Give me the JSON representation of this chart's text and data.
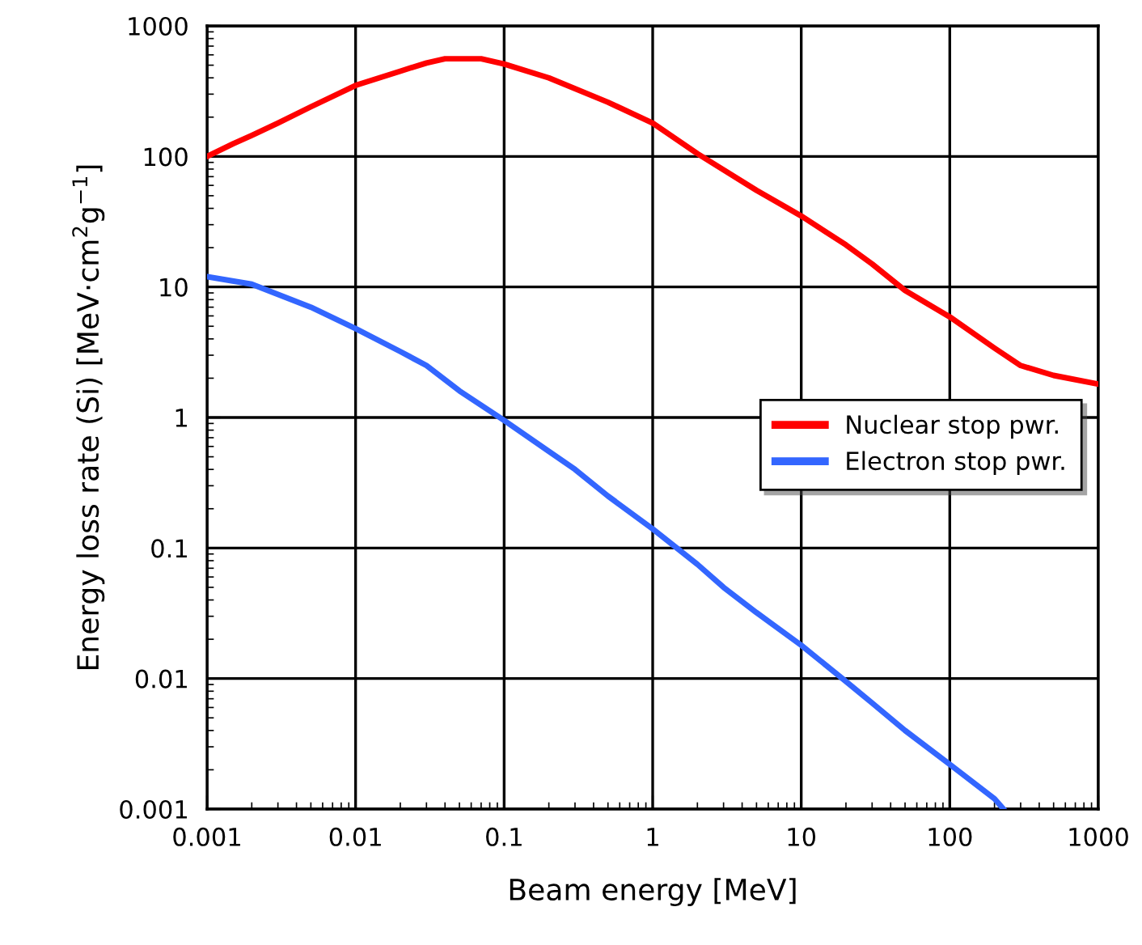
{
  "chart_data": {
    "type": "line",
    "xlabel": "Beam energy [MeV]",
    "ylabel": "Energy loss rate (Si) [MeV·cm$^{2}$g$^{−1}$]",
    "log": "xy",
    "grid": true,
    "legend": "right",
    "marker": "none",
    "line_style": "solid",
    "xlim": [
      0.001,
      1000
    ],
    "ylim": [
      0.001,
      1000
    ],
    "xticks": [
      0.001,
      0.01,
      0.1,
      1,
      10,
      100,
      1000
    ],
    "yticks": [
      0.001,
      0.01,
      0.1,
      1,
      10,
      100,
      1000
    ],
    "series": [
      {
        "name": "Nuclear stop pwr.",
        "color": "#ff0000",
        "x": [
          0.001,
          0.0015,
          0.002,
          0.003,
          0.005,
          0.01,
          0.02,
          0.03,
          0.04,
          0.07,
          0.1,
          0.2,
          0.5,
          1,
          2,
          5,
          10,
          20,
          30,
          50,
          100,
          200,
          300,
          500,
          1000
        ],
        "values": [
          100,
          125,
          145,
          180,
          240,
          350,
          450,
          520,
          560,
          560,
          510,
          400,
          260,
          180,
          105,
          55,
          35,
          21,
          15,
          9.4,
          5.9,
          3.4,
          2.5,
          2.1,
          1.8
        ]
      },
      {
        "name": "Electron stop pwr.",
        "color": "#3366ff",
        "x": [
          0.001,
          0.002,
          0.005,
          0.01,
          0.02,
          0.03,
          0.05,
          0.1,
          0.2,
          0.3,
          0.5,
          1,
          2,
          3,
          5,
          10,
          20,
          30,
          50,
          100,
          200,
          230
        ],
        "values": [
          12,
          10.5,
          7,
          4.8,
          3.2,
          2.5,
          1.6,
          0.95,
          0.55,
          0.4,
          0.25,
          0.14,
          0.075,
          0.05,
          0.032,
          0.018,
          0.0095,
          0.0065,
          0.004,
          0.0022,
          0.0012,
          0.001
        ]
      }
    ]
  }
}
